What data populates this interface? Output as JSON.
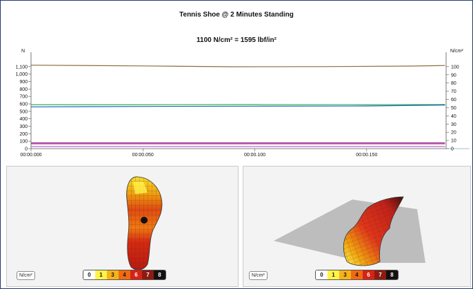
{
  "chart_data": {
    "type": "line",
    "title": "Tennis Shoe @ 2 Minutes Standing",
    "subtitle": "1100 N/cm² = 1595 lbf/in²",
    "left_axis": {
      "label": "N",
      "ylim": [
        0,
        1200
      ],
      "ticks": [
        "0",
        "100",
        "200",
        "300",
        "400",
        "500",
        "600",
        "700",
        "800",
        "900",
        "1,000",
        "1,100"
      ],
      "tick_values": [
        0,
        100,
        200,
        300,
        400,
        500,
        600,
        700,
        800,
        900,
        1000,
        1100
      ]
    },
    "right_axis": {
      "label": "N/cm²",
      "ylim": [
        0,
        109.1
      ],
      "ticks": [
        "0",
        "10",
        "20",
        "30",
        "40",
        "50",
        "60",
        "70",
        "80",
        "90",
        "100"
      ],
      "tick_values": [
        0,
        10,
        20,
        30,
        40,
        50,
        60,
        70,
        80,
        90,
        100
      ]
    },
    "x_axis": {
      "xlim": [
        0,
        0.1855
      ],
      "ticks": [
        "00:00.000",
        "00:00.050",
        "00:00.100",
        "00:00.150"
      ],
      "tick_values": [
        0,
        0.05,
        0.1,
        0.15
      ]
    },
    "grid": false,
    "series": [
      {
        "color": "#8b6b3e",
        "x": [
          0,
          0.05,
          0.09,
          0.13,
          0.17,
          0.185
        ],
        "values": [
          1120,
          1110,
          1098,
          1100,
          1108,
          1115
        ]
      },
      {
        "color": "#2ab34a",
        "x": [
          0,
          0.05,
          0.1,
          0.15,
          0.185
        ],
        "values": [
          590,
          590,
          592,
          590,
          592
        ]
      },
      {
        "color": "#1f5fbf",
        "x": [
          0,
          0.05,
          0.1,
          0.15,
          0.185
        ],
        "values": [
          560,
          566,
          570,
          572,
          585
        ]
      },
      {
        "color": "#7a3fa0",
        "x": [
          0,
          0.185
        ],
        "values": [
          78,
          78
        ]
      },
      {
        "color": "#e0278f",
        "x": [
          0,
          0.185
        ],
        "values": [
          65,
          65
        ]
      },
      {
        "color": "#b06cd0",
        "x": [
          0,
          0.185
        ],
        "values": [
          28,
          28
        ]
      }
    ]
  },
  "panels": {
    "left": {
      "unit_label": "N/cm²"
    },
    "right": {
      "unit_label": "N/cm²"
    }
  },
  "pressure_legend": [
    {
      "label": "0",
      "bg": "#ffffff",
      "fg": "#111111"
    },
    {
      "label": "1",
      "bg": "#fff34a",
      "fg": "#111111"
    },
    {
      "label": "3",
      "bg": "#f7b21a",
      "fg": "#111111"
    },
    {
      "label": "4",
      "bg": "#f06a10",
      "fg": "#111111"
    },
    {
      "label": "6",
      "bg": "#d62315",
      "fg": "#ffffff"
    },
    {
      "label": "7",
      "bg": "#8e1a12",
      "fg": "#ffffff"
    },
    {
      "label": "8",
      "bg": "#151010",
      "fg": "#ffffff"
    }
  ]
}
